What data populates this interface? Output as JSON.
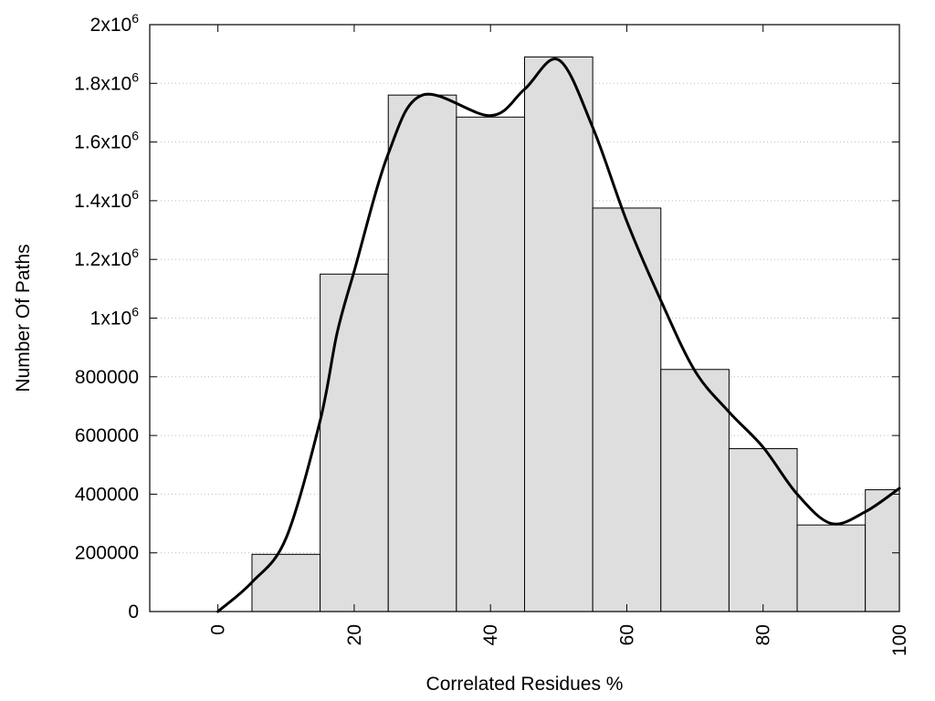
{
  "chart_data": {
    "type": "bar",
    "title": "",
    "xlabel": "Correlated Residues %",
    "ylabel": "Number Of Paths",
    "xlim": [
      -10,
      100
    ],
    "ylim": [
      0,
      2000000
    ],
    "grid": {
      "horizontal": true,
      "style": "dotted"
    },
    "x_ticks": [
      {
        "value": 0,
        "label": "0"
      },
      {
        "value": 20,
        "label": "20"
      },
      {
        "value": 40,
        "label": "40"
      },
      {
        "value": 60,
        "label": "60"
      },
      {
        "value": 80,
        "label": "80"
      },
      {
        "value": 100,
        "label": "100"
      }
    ],
    "y_ticks": [
      {
        "value": 0,
        "label": "0",
        "sup": ""
      },
      {
        "value": 200000,
        "label": "200000",
        "sup": ""
      },
      {
        "value": 400000,
        "label": "400000",
        "sup": ""
      },
      {
        "value": 600000,
        "label": "600000",
        "sup": ""
      },
      {
        "value": 800000,
        "label": "800000",
        "sup": ""
      },
      {
        "value": 1000000,
        "label": "1x10",
        "sup": "6"
      },
      {
        "value": 1200000,
        "label": "1.2x10",
        "sup": "6"
      },
      {
        "value": 1400000,
        "label": "1.4x10",
        "sup": "6"
      },
      {
        "value": 1600000,
        "label": "1.6x10",
        "sup": "6"
      },
      {
        "value": 1800000,
        "label": "1.8x10",
        "sup": "6"
      },
      {
        "value": 2000000,
        "label": "2x10",
        "sup": "6"
      }
    ],
    "bins": [
      {
        "x0": 5,
        "x1": 15,
        "value": 195000
      },
      {
        "x0": 15,
        "x1": 25,
        "value": 1150000
      },
      {
        "x0": 25,
        "x1": 35,
        "value": 1760000
      },
      {
        "x0": 35,
        "x1": 45,
        "value": 1685000
      },
      {
        "x0": 45,
        "x1": 55,
        "value": 1890000
      },
      {
        "x0": 55,
        "x1": 65,
        "value": 1375000
      },
      {
        "x0": 65,
        "x1": 75,
        "value": 825000
      },
      {
        "x0": 75,
        "x1": 85,
        "value": 555000
      },
      {
        "x0": 85,
        "x1": 95,
        "value": 295000
      },
      {
        "x0": 95,
        "x1": 105,
        "value": 415000
      }
    ],
    "curve": [
      {
        "x": 0,
        "y": 0
      },
      {
        "x": 5,
        "y": 100000
      },
      {
        "x": 10,
        "y": 250000
      },
      {
        "x": 15,
        "y": 650000
      },
      {
        "x": 17.5,
        "y": 950000
      },
      {
        "x": 20,
        "y": 1160000
      },
      {
        "x": 25,
        "y": 1560000
      },
      {
        "x": 30,
        "y": 1760000
      },
      {
        "x": 40,
        "y": 1690000
      },
      {
        "x": 45,
        "y": 1780000
      },
      {
        "x": 50,
        "y": 1880000
      },
      {
        "x": 55,
        "y": 1650000
      },
      {
        "x": 60,
        "y": 1330000
      },
      {
        "x": 65,
        "y": 1060000
      },
      {
        "x": 70,
        "y": 820000
      },
      {
        "x": 75,
        "y": 680000
      },
      {
        "x": 80,
        "y": 560000
      },
      {
        "x": 85,
        "y": 400000
      },
      {
        "x": 90,
        "y": 300000
      },
      {
        "x": 95,
        "y": 340000
      },
      {
        "x": 100,
        "y": 420000
      }
    ],
    "colors": {
      "bar_fill": "#dedede",
      "bar_stroke": "#000000",
      "curve": "#000000",
      "grid": "#bbbbbb"
    }
  }
}
